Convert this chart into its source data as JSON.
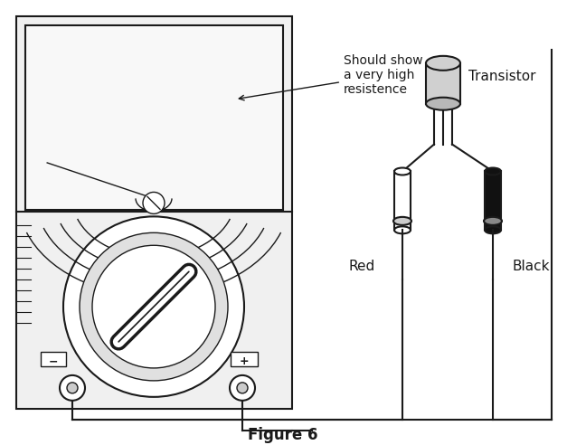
{
  "title": "Figure 6",
  "annotation_text": "Should show\na very high\nresistence",
  "transistor_label": "Transistor",
  "red_label": "Red",
  "black_label": "Black",
  "bg_color": "#ffffff",
  "line_color": "#1a1a1a",
  "gray_fill": "#e8e8e8",
  "dark_fill": "#111111",
  "figsize": [
    6.27,
    4.92
  ],
  "dpi": 100
}
